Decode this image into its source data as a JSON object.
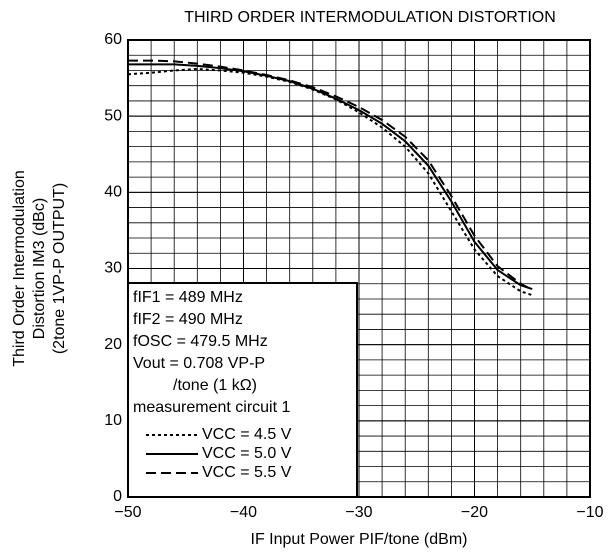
{
  "chart_data": {
    "type": "line",
    "title": "THIRD ORDER INTERMODULATION DISTORTION",
    "x_label": "IF Input Power PIF/tone (dBm)",
    "y_label": [
      "Third Order Intermodulation",
      "Distortion IM3 (dBc)",
      "(2tone 1VP-P OUTPUT)"
    ],
    "conditions": [
      "fIF1 = 489 MHz",
      "fIF2 = 490 MHz",
      "fOSC = 479.5 MHz",
      "Vout = 0.708 VP-P",
      "/tone (1 kΩ)",
      "measurement circuit 1"
    ],
    "x": [
      -50,
      -48,
      -46,
      -44,
      -42,
      -40,
      -38,
      -36,
      -34,
      -32,
      -30,
      -28,
      -26,
      -24,
      -22,
      -20,
      -18,
      -16,
      -15
    ],
    "series": [
      {
        "name": "VCC = 4.5 V",
        "color": "#000000",
        "dash": "dotted",
        "values": [
          55.5,
          55.7,
          56.0,
          56.2,
          56.0,
          55.7,
          55.2,
          54.5,
          53.5,
          52.2,
          50.5,
          48.5,
          46.0,
          42.5,
          37.5,
          32.5,
          29.0,
          27.0,
          26.5
        ]
      },
      {
        "name": "VCC = 5.0 V",
        "color": "#000000",
        "dash": "solid",
        "values": [
          56.8,
          56.8,
          56.8,
          56.6,
          56.3,
          55.9,
          55.3,
          54.6,
          53.6,
          52.3,
          50.8,
          49.0,
          46.7,
          43.5,
          38.8,
          33.5,
          29.8,
          27.8,
          27.3
        ]
      },
      {
        "name": "VCC = 5.5 V",
        "color": "#000000",
        "dash": "dashed",
        "values": [
          57.3,
          57.3,
          57.2,
          56.9,
          56.5,
          56.0,
          55.4,
          54.7,
          53.8,
          52.6,
          51.2,
          49.5,
          47.3,
          44.2,
          39.5,
          34.3,
          30.3,
          28.0,
          27.2
        ]
      }
    ],
    "xlim": [
      -50,
      -10
    ],
    "ylim": [
      0,
      60
    ],
    "xticks": [
      {
        "value": -50,
        "label": "−50"
      },
      {
        "value": -40,
        "label": "−40"
      },
      {
        "value": -30,
        "label": "−30"
      },
      {
        "value": -20,
        "label": "−20"
      },
      {
        "value": -10,
        "label": "−10"
      }
    ],
    "yticks": [
      0,
      10,
      20,
      30,
      40,
      50,
      60
    ],
    "grid": true,
    "minor_grid": 2
  }
}
